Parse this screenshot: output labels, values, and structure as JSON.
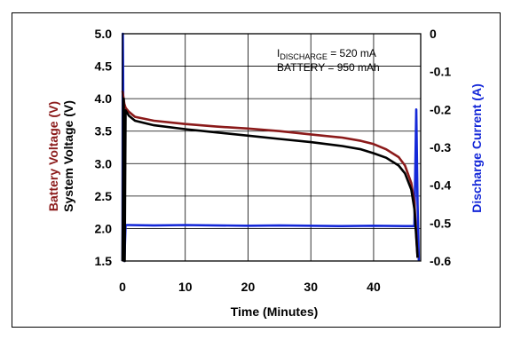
{
  "chart_data": {
    "type": "line",
    "xlabel": "Time (Minutes)",
    "ylabel_left": [
      "Battery Voltage (V)",
      "System Voltage (V)"
    ],
    "ylabel_right": "Discharge Current (A)",
    "xlim": [
      0,
      47.5
    ],
    "ylim_left": [
      1.5,
      5.0
    ],
    "ylim_right": [
      -0.6,
      0
    ],
    "x_ticks": [
      "0",
      "10",
      "20",
      "30",
      "40"
    ],
    "y_left_ticks": [
      "1.5",
      "2.0",
      "2.5",
      "3.0",
      "3.5",
      "4.0",
      "4.5",
      "5.0"
    ],
    "y_right_ticks": [
      "0",
      "-0.1",
      "-0.2",
      "-0.3",
      "-0.4",
      "-0.5",
      "-0.6"
    ],
    "grid": true,
    "annotation": {
      "line1_main": "I",
      "line1_sub": "DISCHARGE",
      "line1_rest": " = 520 mA",
      "line2": "BATTERY = 950 mAh"
    },
    "series": [
      {
        "name": "Battery Voltage (V)",
        "axis": "left",
        "color": "#8b1a1a",
        "x": [
          0,
          0.3,
          0.5,
          1,
          2,
          5,
          10,
          15,
          20,
          25,
          30,
          35,
          38,
          40,
          42,
          44,
          45,
          46,
          46.5,
          47
        ],
        "y": [
          4.12,
          3.92,
          3.86,
          3.8,
          3.72,
          3.66,
          3.61,
          3.57,
          3.54,
          3.5,
          3.45,
          3.4,
          3.35,
          3.3,
          3.22,
          3.1,
          2.97,
          2.7,
          2.4,
          1.55
        ]
      },
      {
        "name": "System Voltage (V)",
        "axis": "left",
        "color": "#000000",
        "x": [
          0,
          0.2,
          0.35,
          0.5,
          1,
          2,
          5,
          10,
          15,
          20,
          25,
          30,
          35,
          38,
          40,
          42,
          44,
          45,
          46,
          46.5,
          47
        ],
        "y": [
          1.5,
          4.0,
          1.5,
          3.82,
          3.74,
          3.66,
          3.59,
          3.53,
          3.48,
          3.43,
          3.38,
          3.33,
          3.27,
          3.22,
          3.16,
          3.09,
          2.97,
          2.85,
          2.6,
          2.3,
          1.55
        ]
      },
      {
        "name": "Discharge Current (A)",
        "axis": "right",
        "color": "#1428d8",
        "x": [
          0,
          0.05,
          0.1,
          0.2,
          0.3,
          0.5,
          1,
          5,
          10,
          15,
          20,
          25,
          30,
          35,
          40,
          45,
          46.5,
          46.8,
          47,
          47.2
        ],
        "y": [
          -0.6,
          0.0,
          -0.1,
          -0.5,
          -0.6,
          -0.505,
          -0.505,
          -0.506,
          -0.505,
          -0.506,
          -0.507,
          -0.506,
          -0.507,
          -0.508,
          -0.507,
          -0.508,
          -0.508,
          -0.2,
          -0.45,
          -0.6
        ]
      }
    ]
  }
}
